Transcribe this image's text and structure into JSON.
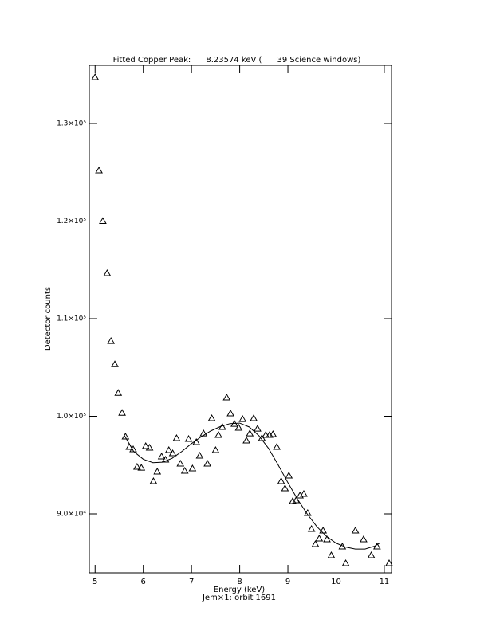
{
  "chart_data": {
    "type": "scatter",
    "title": "Fitted Copper Peak:      8.23574 keV (      39 Science windows)",
    "xlabel": "Energy (keV)",
    "subtitle": "Jem×1: orbit 1691",
    "ylabel": "Detector counts",
    "xlim": [
      4.88,
      11.15
    ],
    "ylim": [
      83960,
      135960
    ],
    "xticks": [
      5,
      6,
      7,
      8,
      9,
      10,
      11
    ],
    "yticks": [
      {
        "value": 90000,
        "label": "9.0×10⁴"
      },
      {
        "value": 100000,
        "label": "1.0×10⁵"
      },
      {
        "value": 110000,
        "label": "1.1×10⁵"
      },
      {
        "value": 120000,
        "label": "1.2×10⁵"
      },
      {
        "value": 130000,
        "label": "1.3×10⁵"
      }
    ],
    "series": [
      {
        "style": "marker",
        "marker": "triangle",
        "color": "#000000",
        "x": [
          5.0,
          5.08,
          5.16,
          5.25,
          5.33,
          5.41,
          5.48,
          5.56,
          5.63,
          5.71,
          5.79,
          5.87,
          5.96,
          6.05,
          6.13,
          6.21,
          6.29,
          6.38,
          6.46,
          6.53,
          6.61,
          6.69,
          6.77,
          6.86,
          6.94,
          7.02,
          7.1,
          7.17,
          7.25,
          7.33,
          7.42,
          7.5,
          7.56,
          7.64,
          7.73,
          7.81,
          7.89,
          7.98,
          8.06,
          8.14,
          8.21,
          8.29,
          8.37,
          8.46,
          8.54,
          8.62,
          8.69,
          8.77,
          8.86,
          8.94,
          9.02,
          9.1,
          9.17,
          9.25,
          9.33,
          9.41,
          9.49,
          9.57,
          9.65,
          9.73,
          9.81,
          9.9,
          10.13,
          10.2,
          10.4,
          10.57,
          10.73,
          10.85,
          11.1
        ],
        "values": [
          134735,
          125180,
          120000,
          114650,
          107710,
          105330,
          102390,
          100350,
          97920,
          96860,
          96610,
          94820,
          94730,
          96940,
          96780,
          93350,
          94330,
          95880,
          95550,
          96530,
          96200,
          97760,
          95140,
          94410,
          97670,
          94650,
          97350,
          95960,
          98240,
          95140,
          99800,
          96530,
          98080,
          98900,
          101920,
          100290,
          99220,
          98820,
          99710,
          97510,
          98240,
          99800,
          98730,
          97760,
          98080,
          98080,
          98160,
          96860,
          93350,
          92610,
          93920,
          91310,
          91390,
          91880,
          92040,
          90080,
          88450,
          86900,
          87470,
          88290,
          87390,
          85760,
          86650,
          84940,
          88290,
          87390,
          85760,
          86650,
          84940
        ]
      },
      {
        "style": "line",
        "color": "#000000",
        "x": [
          5.6,
          5.8,
          6.0,
          6.2,
          6.4,
          6.6,
          6.8,
          7.0,
          7.2,
          7.4,
          7.6,
          7.8,
          8.0,
          8.2,
          8.4,
          8.6,
          8.8,
          9.0,
          9.2,
          9.4,
          9.6,
          9.8,
          10.0,
          10.2,
          10.4,
          10.6,
          10.8,
          10.9
        ],
        "values": [
          98100,
          96400,
          95600,
          95250,
          95300,
          95700,
          96400,
          97200,
          97900,
          98500,
          98950,
          99250,
          99300,
          98900,
          98000,
          96700,
          95000,
          93200,
          91500,
          90000,
          88700,
          87700,
          87000,
          86600,
          86400,
          86400,
          86700,
          87000
        ]
      }
    ]
  }
}
